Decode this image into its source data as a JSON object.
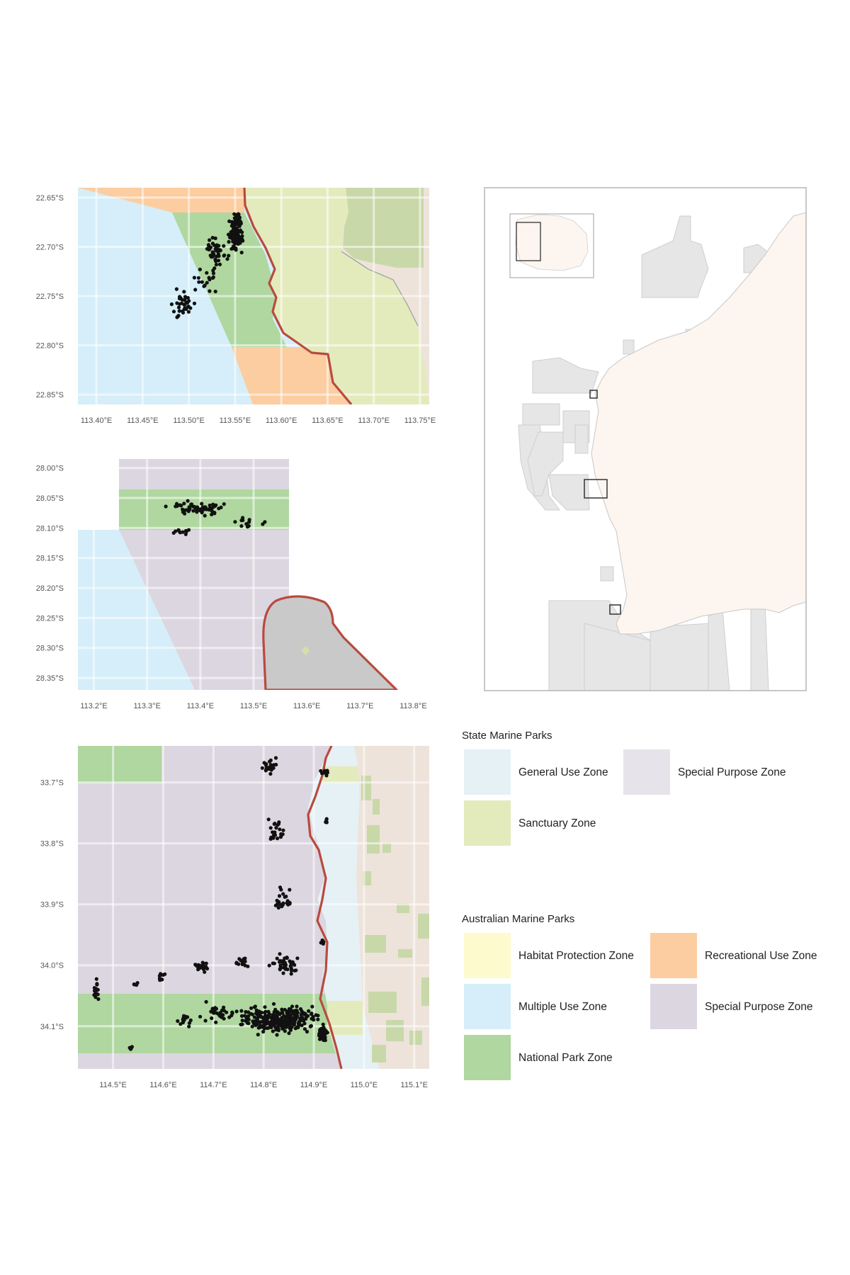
{
  "colors": {
    "multiple_use_zone": "#d5eef9",
    "recreational_use_zone": "#fccda0",
    "national_park_zone": "#afd79f",
    "sanctuary_zone": "#e3ebbd",
    "habitat_protection_zone": "#fdfbcd",
    "amp_special_purpose_zone": "#dcd6e0",
    "state_special_purpose_zone": "#e7e3ea",
    "general_use_zone": "#e5f1f5",
    "land": "#ede3da",
    "vegetation": "#c9d8a8",
    "overview_land": "#fdf5ef",
    "overview_parks": "#e6e6e6",
    "boundary_line": "#b94a3f",
    "points": "#111111",
    "grid": "#eaeaea",
    "frame": "#b5b5b5"
  },
  "panels": [
    {
      "id": "panel-a",
      "lon_range": [
        113.38,
        113.76
      ],
      "lat_range": [
        -22.86,
        -22.64
      ],
      "x_ticks": [
        113.4,
        113.45,
        113.5,
        113.55,
        113.6,
        113.65,
        113.7,
        113.75
      ],
      "x_tick_labels": [
        "113.40°E",
        "113.45°E",
        "113.50°E",
        "113.55°E",
        "113.60°E",
        "113.65°E",
        "113.70°E",
        "113.75°E"
      ],
      "y_ticks": [
        -22.65,
        -22.7,
        -22.75,
        -22.8,
        -22.85
      ],
      "y_tick_labels": [
        "22.65°S",
        "22.70°S",
        "22.75°S",
        "22.80°S",
        "22.85°S"
      ]
    },
    {
      "id": "panel-b",
      "lon_range": [
        113.17,
        113.83
      ],
      "lat_range": [
        -28.37,
        -27.985
      ],
      "x_ticks": [
        113.2,
        113.3,
        113.4,
        113.5,
        113.6,
        113.7,
        113.8
      ],
      "x_tick_labels": [
        "113.2°E",
        "113.3°E",
        "113.4°E",
        "113.5°E",
        "113.6°E",
        "113.7°E",
        "113.8°E"
      ],
      "y_ticks": [
        -28.0,
        -28.05,
        -28.1,
        -28.15,
        -28.2,
        -28.25,
        -28.3,
        -28.35
      ],
      "y_tick_labels": [
        "28.00°S",
        "28.05°S",
        "28.10°S",
        "28.15°S",
        "28.20°S",
        "28.25°S",
        "28.30°S",
        "28.35°S"
      ]
    },
    {
      "id": "panel-c",
      "lon_range": [
        114.43,
        115.13
      ],
      "lat_range": [
        -34.17,
        -33.64
      ],
      "x_ticks": [
        114.5,
        114.6,
        114.7,
        114.8,
        114.9,
        115.0,
        115.1
      ],
      "x_tick_labels": [
        "114.5°E",
        "114.6°E",
        "114.7°E",
        "114.8°E",
        "114.9°E",
        "115.0°E",
        "115.1°E"
      ],
      "y_ticks": [
        -33.7,
        -33.8,
        -33.9,
        -34.0,
        -34.1
      ],
      "y_tick_labels": [
        "33.7°S",
        "33.8°S",
        "33.9°S",
        "34.0°S",
        "34.1°S"
      ]
    }
  ],
  "legend": {
    "state": {
      "title": "State Marine Parks",
      "items": [
        {
          "label": "General Use Zone",
          "color_key": "general_use_zone"
        },
        {
          "label": "Special Purpose Zone",
          "color_key": "state_special_purpose_zone"
        },
        {
          "label": "Sanctuary Zone",
          "color_key": "sanctuary_zone"
        }
      ]
    },
    "australian": {
      "title": "Australian Marine Parks",
      "items": [
        {
          "label": "Habitat Protection Zone",
          "color_key": "habitat_protection_zone"
        },
        {
          "label": "Recreational Use Zone",
          "color_key": "recreational_use_zone"
        },
        {
          "label": "Multiple Use Zone",
          "color_key": "multiple_use_zone"
        },
        {
          "label": "Special Purpose Zone",
          "color_key": "amp_special_purpose_zone"
        },
        {
          "label": "National Park Zone",
          "color_key": "national_park_zone"
        }
      ]
    }
  }
}
